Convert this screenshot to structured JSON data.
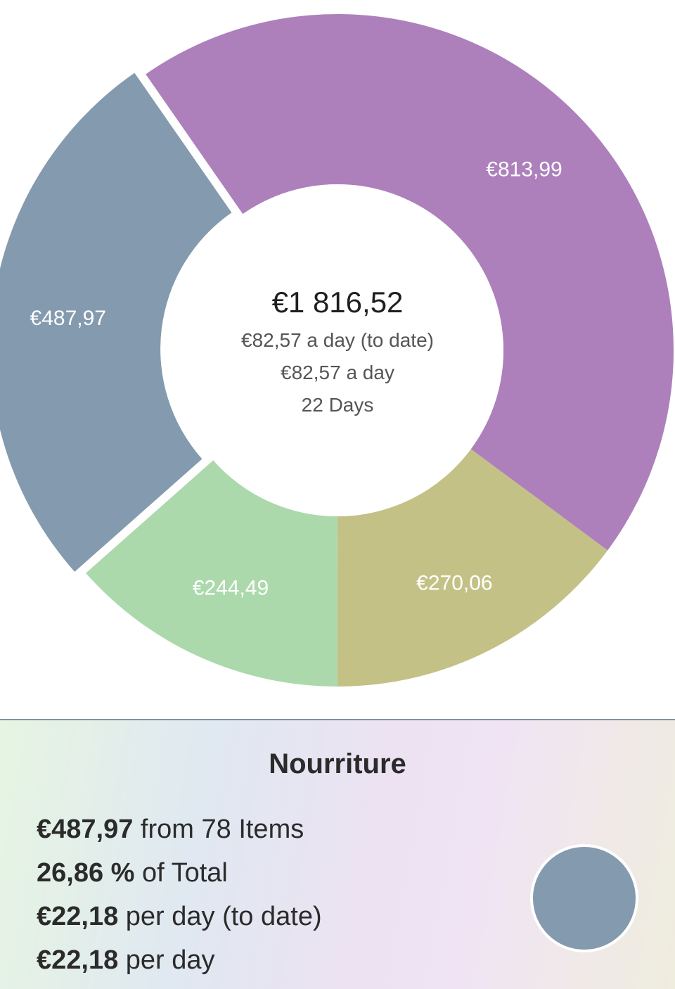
{
  "summary": {
    "total": "€1 816,52",
    "per_day_to_date": "€82,57 a day (to date)",
    "per_day": "€82,57 a day",
    "days": "22 Days"
  },
  "chart_data": {
    "type": "pie",
    "style": "donut",
    "selected_slice": "€487,97",
    "slices": [
      {
        "label": "€813,99",
        "value": 813.99,
        "color": "#ad80bc"
      },
      {
        "label": "€270,06",
        "value": 270.06,
        "color": "#c4c186"
      },
      {
        "label": "€244,49",
        "value": 244.49,
        "color": "#acd9ac"
      },
      {
        "label": "€487,97",
        "value": 487.97,
        "color": "#849aae"
      }
    ]
  },
  "detail": {
    "title": "Nourriture",
    "amount_value": "€487,97",
    "amount_text": " from 78 Items",
    "percent_value": "26,86 %",
    "percent_text": " of Total",
    "per_day_to_date_value": "€22,18",
    "per_day_to_date_text": " per day (to date)",
    "per_day_value": "€22,18",
    "per_day_text": " per day",
    "swatch_color": "#849aae"
  }
}
